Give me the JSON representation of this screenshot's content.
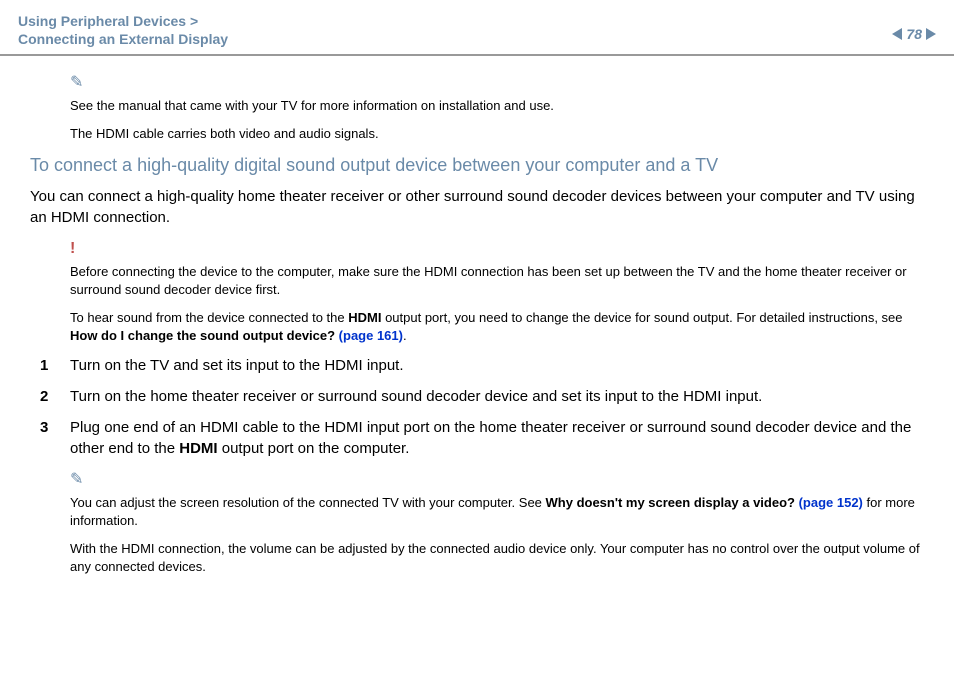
{
  "header": {
    "breadcrumb_line1": "Using Peripheral Devices >",
    "breadcrumb_line2": "Connecting an External Display",
    "page_number": "78"
  },
  "note1": {
    "line1": "See the manual that came with your TV for more information on installation and use.",
    "line2": "The HDMI cable carries both video and audio signals."
  },
  "heading": "To connect a high-quality digital sound output device between your computer and a TV",
  "intro": "You can connect a high-quality home theater receiver or other surround sound decoder devices between your computer and TV using an HDMI connection.",
  "warn": {
    "para1": "Before connecting the device to the computer, make sure the HDMI connection has been set up between the TV and the home theater receiver or surround sound decoder device first.",
    "para2_a": "To hear sound from the device connected to the ",
    "para2_hdmi": "HDMI",
    "para2_b": " output port, you need to change the device for sound output. For detailed instructions, see ",
    "para2_link_label": "How do I change the sound output device?",
    "para2_link_page": " (page 161)",
    "para2_end": "."
  },
  "steps": {
    "s1": "Turn on the TV and set its input to the HDMI input.",
    "s2": "Turn on the home theater receiver or surround sound decoder device and set its input to the HDMI input.",
    "s3_a": "Plug one end of an HDMI cable to the HDMI input port on the home theater receiver or surround sound decoder device and the other end to the ",
    "s3_hdmi": "HDMI",
    "s3_b": " output port on the computer."
  },
  "note2": {
    "p1_a": "You can adjust the screen resolution of the connected TV with your computer. See ",
    "p1_link_label": "Why doesn't my screen display a video?",
    "p1_link_page": " (page 152)",
    "p1_b": " for more information.",
    "p2": "With the HDMI connection, the volume can be adjusted by the connected audio device only. Your computer has no control over the output volume of any connected devices."
  },
  "colors": {
    "breadcrumb": "#6a8aa8",
    "link": "#0033cc",
    "warn": "#c0504d"
  }
}
